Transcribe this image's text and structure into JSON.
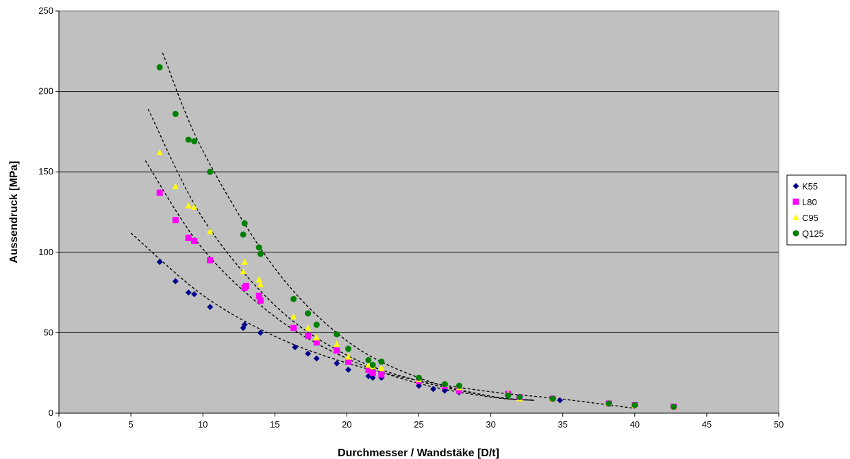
{
  "chart_data": {
    "type": "scatter",
    "xlabel": "Durchmesser / Wandstäke [D/t]",
    "ylabel": "Aussendruck [MPa]",
    "xlim": [
      0,
      50
    ],
    "ylim": [
      0,
      250
    ],
    "xticks": [
      0,
      5,
      10,
      15,
      20,
      25,
      30,
      35,
      40,
      45,
      50
    ],
    "yticks": [
      0,
      50,
      100,
      150,
      200,
      250
    ],
    "grid": "horizontal",
    "plot_background": "#c0c0c0",
    "legend_position": "right",
    "trendline_style": "dashed",
    "series": [
      {
        "name": "K55",
        "color": "#00008b",
        "marker": "diamond",
        "points": [
          [
            7.0,
            94
          ],
          [
            8.1,
            82
          ],
          [
            9.0,
            75
          ],
          [
            9.4,
            74
          ],
          [
            10.5,
            66
          ],
          [
            12.8,
            53
          ],
          [
            12.9,
            55
          ],
          [
            14.0,
            50
          ],
          [
            16.4,
            41
          ],
          [
            17.3,
            37
          ],
          [
            17.9,
            34
          ],
          [
            19.3,
            31
          ],
          [
            20.1,
            27
          ],
          [
            21.5,
            23
          ],
          [
            21.8,
            22
          ],
          [
            22.4,
            22
          ],
          [
            25.0,
            17
          ],
          [
            26.0,
            15
          ],
          [
            26.8,
            14
          ],
          [
            27.8,
            13
          ],
          [
            31.2,
            12
          ],
          [
            32.0,
            9
          ],
          [
            34.3,
            9
          ],
          [
            34.8,
            8
          ],
          [
            38.2,
            6
          ],
          [
            40.0,
            5
          ],
          [
            42.7,
            4
          ]
        ],
        "trend": [
          [
            5,
            112
          ],
          [
            10,
            73.3
          ],
          [
            15,
            47.8
          ],
          [
            20,
            31.2
          ],
          [
            25,
            20.3
          ],
          [
            30,
            13.3
          ],
          [
            35,
            8.7
          ],
          [
            40,
            3
          ]
        ]
      },
      {
        "name": "L80",
        "color": "#ff00ff",
        "marker": "square",
        "points": [
          [
            7.0,
            137
          ],
          [
            8.1,
            120
          ],
          [
            9.0,
            109
          ],
          [
            9.4,
            107
          ],
          [
            10.5,
            95
          ],
          [
            12.9,
            78
          ],
          [
            13.0,
            79
          ],
          [
            13.9,
            73
          ],
          [
            14.0,
            70
          ],
          [
            16.3,
            53
          ],
          [
            17.3,
            48
          ],
          [
            17.9,
            44
          ],
          [
            19.3,
            39
          ],
          [
            20.1,
            32
          ],
          [
            21.5,
            27
          ],
          [
            21.8,
            25
          ],
          [
            22.4,
            24
          ],
          [
            25.0,
            20
          ],
          [
            26.8,
            17
          ],
          [
            27.8,
            14
          ],
          [
            31.2,
            12
          ],
          [
            32.0,
            10
          ],
          [
            34.3,
            9
          ],
          [
            38.2,
            6
          ],
          [
            40.0,
            5
          ],
          [
            42.7,
            4
          ]
        ],
        "trend": [
          [
            6,
            157
          ],
          [
            10,
            102
          ],
          [
            15,
            60
          ],
          [
            20,
            34
          ],
          [
            25,
            18.5
          ],
          [
            30,
            10
          ],
          [
            33,
            8
          ]
        ]
      },
      {
        "name": "C95",
        "color": "#ffff00",
        "marker": "triangle",
        "points": [
          [
            7.0,
            162
          ],
          [
            8.1,
            141
          ],
          [
            9.0,
            129
          ],
          [
            9.4,
            128
          ],
          [
            10.5,
            113
          ],
          [
            12.8,
            88
          ],
          [
            12.9,
            94
          ],
          [
            13.9,
            83
          ],
          [
            14.0,
            80
          ],
          [
            16.3,
            60
          ],
          [
            17.3,
            53
          ],
          [
            17.9,
            47
          ],
          [
            19.3,
            43
          ],
          [
            20.1,
            35
          ],
          [
            21.5,
            30
          ],
          [
            21.8,
            29
          ],
          [
            22.4,
            28
          ],
          [
            25.0,
            21
          ],
          [
            26.8,
            18
          ],
          [
            27.8,
            16
          ],
          [
            31.2,
            12
          ],
          [
            32.0,
            9
          ],
          [
            34.3,
            9
          ],
          [
            38.2,
            6
          ],
          [
            40.0,
            5
          ],
          [
            42.7,
            4
          ]
        ],
        "trend": [
          [
            6.2,
            189
          ],
          [
            10,
            121
          ],
          [
            15,
            67
          ],
          [
            20,
            36
          ],
          [
            25,
            20
          ],
          [
            30,
            10.5
          ],
          [
            33,
            8
          ]
        ]
      },
      {
        "name": "Q125",
        "color": "#008000",
        "marker": "circle",
        "points": [
          [
            7.0,
            215
          ],
          [
            8.1,
            186
          ],
          [
            9.0,
            170
          ],
          [
            9.4,
            169
          ],
          [
            10.5,
            150
          ],
          [
            12.8,
            111
          ],
          [
            12.9,
            118
          ],
          [
            13.9,
            103
          ],
          [
            14.0,
            99
          ],
          [
            16.3,
            71
          ],
          [
            17.3,
            62
          ],
          [
            17.9,
            55
          ],
          [
            19.3,
            49
          ],
          [
            20.1,
            40
          ],
          [
            21.5,
            33
          ],
          [
            21.8,
            30
          ],
          [
            22.4,
            32
          ],
          [
            25.0,
            22
          ],
          [
            26.8,
            18
          ],
          [
            27.8,
            17
          ],
          [
            31.2,
            11
          ],
          [
            32.0,
            10
          ],
          [
            34.3,
            9
          ],
          [
            38.2,
            6
          ],
          [
            40.0,
            5
          ],
          [
            42.7,
            4
          ]
        ],
        "trend": [
          [
            7.2,
            224
          ],
          [
            10,
            163
          ],
          [
            15,
            90
          ],
          [
            20,
            45
          ],
          [
            25,
            22
          ],
          [
            30,
            10.5
          ],
          [
            33,
            8
          ]
        ]
      }
    ]
  }
}
